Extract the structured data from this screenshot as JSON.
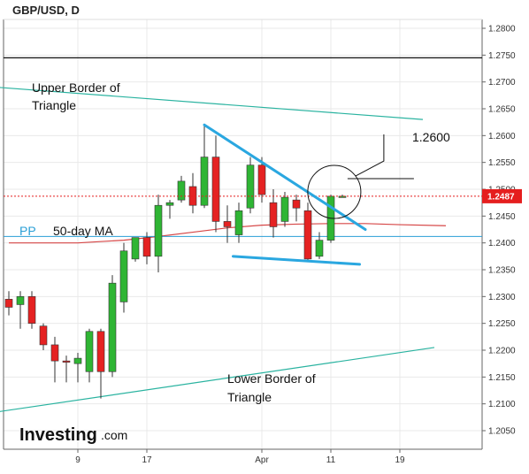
{
  "chart_data": {
    "type": "candlestick",
    "title": "GBP/USD, D",
    "y_axis": {
      "range": [
        1.2005,
        1.283
      ],
      "ticks": [
        "1.2800",
        "1.2750",
        "1.2700",
        "1.2650",
        "1.2600",
        "1.2550",
        "1.2500",
        "1.2450",
        "1.2400",
        "1.2350",
        "1.2300",
        "1.2250",
        "1.2200",
        "1.2150",
        "1.2100",
        "1.2050"
      ],
      "position": "right"
    },
    "x_axis": {
      "labels": [
        {
          "text": "9",
          "at": 6
        },
        {
          "text": "17",
          "at": 12
        },
        {
          "text": "Apr",
          "at": 22
        },
        {
          "text": "11",
          "at": 28
        },
        {
          "text": "19",
          "at": 34
        }
      ]
    },
    "candles": [
      {
        "o": 1.2295,
        "h": 1.231,
        "l": 1.2265,
        "c": 1.228
      },
      {
        "o": 1.2285,
        "h": 1.231,
        "l": 1.224,
        "c": 1.23
      },
      {
        "o": 1.23,
        "h": 1.231,
        "l": 1.224,
        "c": 1.225
      },
      {
        "o": 1.2245,
        "h": 1.225,
        "l": 1.22,
        "c": 1.221
      },
      {
        "o": 1.221,
        "h": 1.2225,
        "l": 1.214,
        "c": 1.218
      },
      {
        "o": 1.218,
        "h": 1.219,
        "l": 1.214,
        "c": 1.2178
      },
      {
        "o": 1.2175,
        "h": 1.2195,
        "l": 1.214,
        "c": 1.2185
      },
      {
        "o": 1.216,
        "h": 1.224,
        "l": 1.214,
        "c": 1.2235
      },
      {
        "o": 1.2235,
        "h": 1.224,
        "l": 1.211,
        "c": 1.216
      },
      {
        "o": 1.216,
        "h": 1.234,
        "l": 1.215,
        "c": 1.2325
      },
      {
        "o": 1.229,
        "h": 1.24,
        "l": 1.227,
        "c": 1.2385
      },
      {
        "o": 1.237,
        "h": 1.241,
        "l": 1.2365,
        "c": 1.241
      },
      {
        "o": 1.241,
        "h": 1.242,
        "l": 1.236,
        "c": 1.2375
      },
      {
        "o": 1.2375,
        "h": 1.249,
        "l": 1.2345,
        "c": 1.247
      },
      {
        "o": 1.247,
        "h": 1.248,
        "l": 1.2445,
        "c": 1.2475
      },
      {
        "o": 1.248,
        "h": 1.2525,
        "l": 1.2475,
        "c": 1.2515
      },
      {
        "o": 1.2505,
        "h": 1.253,
        "l": 1.2455,
        "c": 1.247
      },
      {
        "o": 1.247,
        "h": 1.262,
        "l": 1.2465,
        "c": 1.256
      },
      {
        "o": 1.256,
        "h": 1.26,
        "l": 1.242,
        "c": 1.244
      },
      {
        "o": 1.244,
        "h": 1.247,
        "l": 1.24,
        "c": 1.243
      },
      {
        "o": 1.2415,
        "h": 1.2475,
        "l": 1.24,
        "c": 1.246
      },
      {
        "o": 1.2465,
        "h": 1.256,
        "l": 1.2455,
        "c": 1.2545
      },
      {
        "o": 1.2545,
        "h": 1.256,
        "l": 1.2475,
        "c": 1.249
      },
      {
        "o": 1.2475,
        "h": 1.25,
        "l": 1.241,
        "c": 1.243
      },
      {
        "o": 1.244,
        "h": 1.2495,
        "l": 1.243,
        "c": 1.2485
      },
      {
        "o": 1.248,
        "h": 1.249,
        "l": 1.244,
        "c": 1.2465
      },
      {
        "o": 1.246,
        "h": 1.2475,
        "l": 1.2365,
        "c": 1.237
      },
      {
        "o": 1.2375,
        "h": 1.242,
        "l": 1.237,
        "c": 1.2405
      },
      {
        "o": 1.2405,
        "h": 1.249,
        "l": 1.24,
        "c": 1.2487
      },
      {
        "o": 1.2487,
        "h": 1.249,
        "l": 1.2485,
        "c": 1.2487
      }
    ],
    "ma": {
      "name": "50-day MA",
      "color": "#d64646",
      "points": [
        [
          0,
          1.24
        ],
        [
          6,
          1.24
        ],
        [
          10,
          1.2405
        ],
        [
          13,
          1.2412
        ],
        [
          16,
          1.242
        ],
        [
          19,
          1.2428
        ],
        [
          22,
          1.2433
        ],
        [
          25,
          1.2435
        ],
        [
          28,
          1.2436
        ],
        [
          31,
          1.2436
        ],
        [
          34,
          1.2434
        ],
        [
          38,
          1.2432
        ]
      ]
    },
    "pp": {
      "label": "PP",
      "value": 1.2412,
      "color": "#2a9fd6"
    },
    "price_line": {
      "value": 1.2487,
      "label": "1.2487",
      "color": "#e51e1e"
    },
    "horizontal_line": {
      "value": 1.2745,
      "color": "#111111"
    },
    "triangle": {
      "color": "#2ab3a0",
      "upper": {
        "from": [
          -1,
          1.269
        ],
        "to": [
          36,
          1.263
        ],
        "label": "Upper Border of Triangle"
      },
      "lower": {
        "from": [
          -1,
          1.2085
        ],
        "to": [
          37,
          1.2205
        ],
        "label": "Lower Border of Triangle"
      }
    },
    "wedge": {
      "color": "#2aa7e0",
      "upper": {
        "from": [
          17,
          1.262
        ],
        "to": [
          31,
          1.2425
        ]
      },
      "lower": {
        "from": [
          19.5,
          1.2375
        ],
        "to": [
          30.5,
          1.236
        ]
      }
    },
    "circle_annotation": {
      "center": [
        28.3,
        1.2495
      ],
      "label": "1.2600"
    },
    "colors": {
      "up": "#2fb534",
      "down": "#e52222",
      "grid": "#e9e9e9",
      "axis": "#666666"
    }
  },
  "chart_labels": {
    "title": "GBP/USD, D",
    "pp_label": "PP",
    "ma_label": "50-day MA",
    "upper_border_line1": "Upper Border of",
    "upper_border_line2": "Triangle",
    "lower_border_line1": "Lower Border of",
    "lower_border_line2": "Triangle",
    "circle_label": "1.2600",
    "price_tag": "1.2487"
  },
  "logo": {
    "main": "Investing",
    "suffix": ".com"
  }
}
